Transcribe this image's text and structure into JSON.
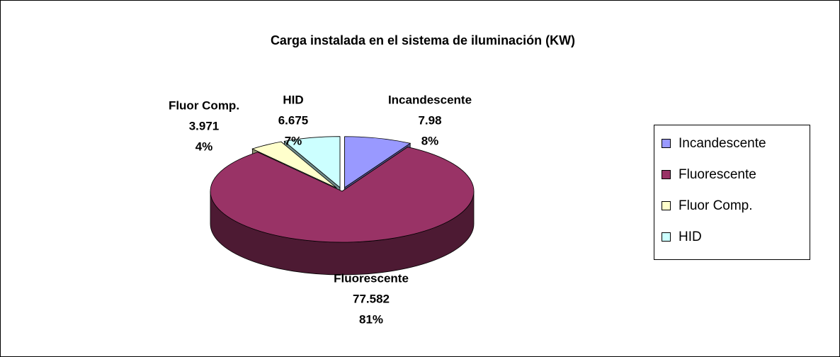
{
  "chart_data": {
    "type": "pie3d",
    "title": "Carga instalada en el sistema de iluminación (KW)",
    "categories": [
      "Incandescente",
      "Fluorescente",
      "Fluor Comp.",
      "HID"
    ],
    "values": [
      7.98,
      77.582,
      3.971,
      6.675
    ],
    "percent_labels": [
      "8%",
      "81%",
      "4%",
      "7%"
    ],
    "colors": [
      "#9999ff",
      "#993366",
      "#ffffcc",
      "#ccffff"
    ],
    "legend": "right"
  }
}
